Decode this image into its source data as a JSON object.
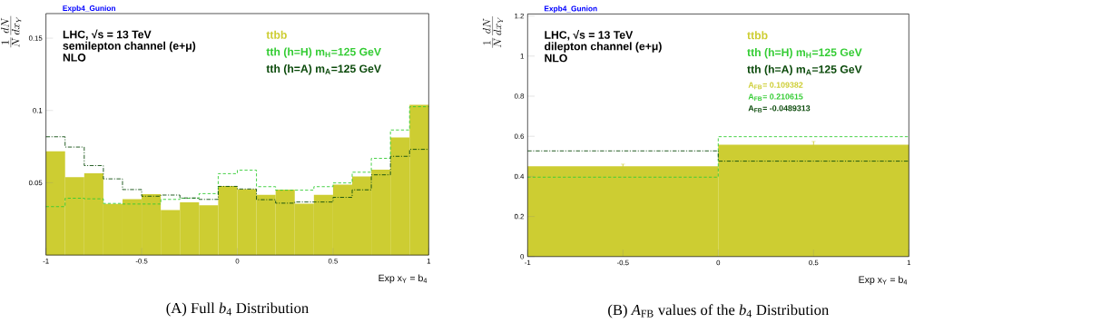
{
  "chart_data": [
    {
      "type": "histogram",
      "title": "Expb4_Gunion",
      "xlabel": "Exp x$_{Y}$ = b$_{4}$",
      "ylabel": "\\frac{1}{N}\\frac{dN}{dx_{Y}}",
      "bins": [
        -1,
        -0.9,
        -0.8,
        -0.7,
        -0.6,
        -0.5,
        -0.4,
        -0.3,
        -0.2,
        -0.1,
        0,
        0.1,
        0.2,
        0.3,
        0.4,
        0.5,
        0.6,
        0.7,
        0.8,
        0.9,
        1
      ],
      "series": [
        {
          "name": "ttbb",
          "color": "#cdcd32",
          "values": [
            0.0717,
            0.0539,
            0.0565,
            0.0353,
            0.0387,
            0.0421,
            0.0312,
            0.0365,
            0.0345,
            0.0477,
            0.0455,
            0.0417,
            0.0453,
            0.0355,
            0.0417,
            0.0487,
            0.0543,
            0.0591,
            0.0813,
            0.1039
          ]
        },
        {
          "name": "tth (h=H)  m$_{H}$=125 GeV",
          "color": "#33cc33",
          "line_style": "dashed",
          "values": [
            0.0335,
            0.0393,
            0.0389,
            0.0357,
            0.0353,
            0.0353,
            0.0385,
            0.0393,
            0.0425,
            0.0563,
            0.0587,
            0.0473,
            0.0449,
            0.0449,
            0.0473,
            0.0499,
            0.0573,
            0.0669,
            0.0865,
            0.1026
          ]
        },
        {
          "name": "tth (h=A)  m$_{A}$=125 GeV",
          "color": "#0b4a0b",
          "line_style": "dashdot",
          "values": [
            0.0818,
            0.0747,
            0.0619,
            0.0527,
            0.0453,
            0.0407,
            0.0415,
            0.0395,
            0.0385,
            0.0475,
            0.0457,
            0.0383,
            0.0359,
            0.0367,
            0.0367,
            0.0399,
            0.0451,
            0.0555,
            0.0683,
            0.0731
          ]
        }
      ],
      "xlim": [
        -1,
        1
      ],
      "ylim": [
        0,
        0.167
      ],
      "xticks": [
        -1,
        -0.5,
        0,
        0.5,
        1
      ],
      "yticks": [
        0.05,
        0.1,
        0.15
      ],
      "legend": "top right",
      "annotations": [
        "LHC,  √s = 13 TeV",
        "semilepton channel (e+μ)",
        "NLO",
        "(A) Full *b*$_{4}$ Distribution"
      ]
    },
    {
      "type": "histogram",
      "title": "Expb4_Gunion",
      "xlabel": "Exp x$_{Y}$ = b$_{4}$",
      "ylabel": "\\frac{1}{N}\\frac{dN}{dx_{Y}}",
      "bins": [
        -1,
        0,
        1
      ],
      "series": [
        {
          "name": "ttbb",
          "color": "#cdcd32",
          "values": [
            0.45,
            0.558
          ],
          "errors": [
            0.011,
            0.016
          ]
        },
        {
          "name": "tth (h=H)  m$_{H}$=125 GeV",
          "color": "#33cc33",
          "line_style": "dashed",
          "values": [
            0.396,
            0.598
          ]
        },
        {
          "name": "tth (h=A)  m$_{A}$=125 GeV",
          "color": "#0b4a0b",
          "line_style": "dashdot",
          "values": [
            0.527,
            0.476
          ]
        }
      ],
      "xlim": [
        -1,
        1
      ],
      "ylim": [
        0,
        1.21
      ],
      "xticks": [
        -1,
        -0.5,
        0,
        0.5,
        1
      ],
      "yticks": [
        0,
        0.2,
        0.4,
        0.6,
        0.8,
        1,
        1.2
      ],
      "legend": "top right",
      "annotations": [
        "LHC,  √s = 13 TeV",
        "dilepton channel (e+μ)",
        "NLO",
        "A$_{FB}$=   0.109382",
        "A$_{FB}$=   0.210615",
        "A$_{FB}$=   -0.0489313",
        "(B) *A*$_{FB}$ values of the *b*$_{4}$ Distribution"
      ]
    }
  ]
}
